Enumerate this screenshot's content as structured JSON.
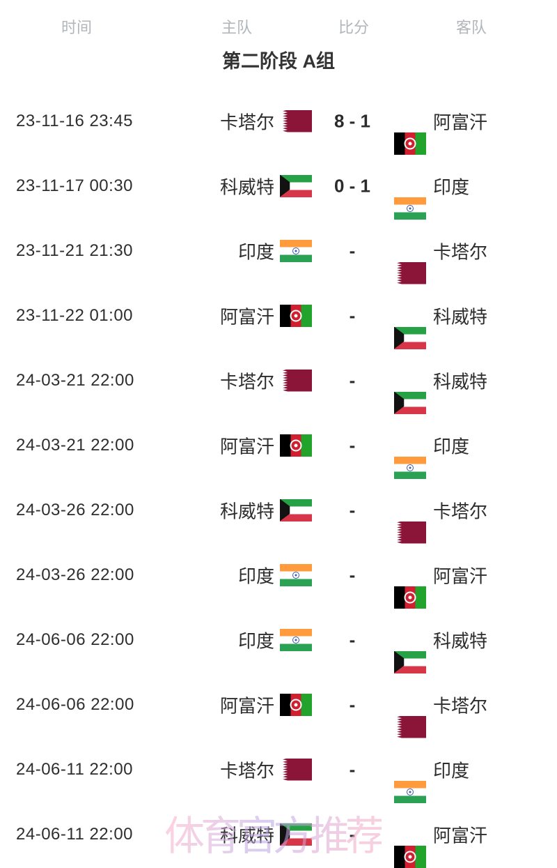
{
  "header": {
    "time_label": "时间",
    "home_label": "主队",
    "score_label": "比分",
    "away_label": "客队"
  },
  "section_title": "第二阶段 A组",
  "watermark": "体育官方推荐",
  "colors": {
    "header_text": "#b2b6bb",
    "body_text": "#2d2d2d",
    "qatar_maroon": "#8a1538",
    "afghanistan_red": "#d01f2f",
    "afghanistan_green": "#21a32c",
    "kuwait_green": "#27a145",
    "kuwait_red": "#d63648",
    "india_saffron": "#ff9a3d",
    "india_green": "#2aa153",
    "watermark_pink": "#f6aecb",
    "watermark_lavender": "#b9a5e6"
  },
  "matches": [
    {
      "time": "23-11-16 23:45",
      "home": {
        "name": "卡塔尔",
        "flag": "qatar"
      },
      "score": "8 - 1",
      "away": {
        "name": "阿富汗",
        "flag": "afghanistan"
      }
    },
    {
      "time": "23-11-17 00:30",
      "home": {
        "name": "科威特",
        "flag": "kuwait"
      },
      "score": "0 - 1",
      "away": {
        "name": "印度",
        "flag": "india"
      }
    },
    {
      "time": "23-11-21 21:30",
      "home": {
        "name": "印度",
        "flag": "india"
      },
      "score": "-",
      "away": {
        "name": "卡塔尔",
        "flag": "qatar"
      }
    },
    {
      "time": "23-11-22 01:00",
      "home": {
        "name": "阿富汗",
        "flag": "afghanistan"
      },
      "score": "-",
      "away": {
        "name": "科威特",
        "flag": "kuwait"
      }
    },
    {
      "time": "24-03-21 22:00",
      "home": {
        "name": "卡塔尔",
        "flag": "qatar"
      },
      "score": "-",
      "away": {
        "name": "科威特",
        "flag": "kuwait"
      }
    },
    {
      "time": "24-03-21 22:00",
      "home": {
        "name": "阿富汗",
        "flag": "afghanistan"
      },
      "score": "-",
      "away": {
        "name": "印度",
        "flag": "india"
      }
    },
    {
      "time": "24-03-26 22:00",
      "home": {
        "name": "科威特",
        "flag": "kuwait"
      },
      "score": "-",
      "away": {
        "name": "卡塔尔",
        "flag": "qatar"
      }
    },
    {
      "time": "24-03-26 22:00",
      "home": {
        "name": "印度",
        "flag": "india"
      },
      "score": "-",
      "away": {
        "name": "阿富汗",
        "flag": "afghanistan"
      }
    },
    {
      "time": "24-06-06 22:00",
      "home": {
        "name": "印度",
        "flag": "india"
      },
      "score": "-",
      "away": {
        "name": "科威特",
        "flag": "kuwait"
      }
    },
    {
      "time": "24-06-06 22:00",
      "home": {
        "name": "阿富汗",
        "flag": "afghanistan"
      },
      "score": "-",
      "away": {
        "name": "卡塔尔",
        "flag": "qatar"
      }
    },
    {
      "time": "24-06-11 22:00",
      "home": {
        "name": "卡塔尔",
        "flag": "qatar"
      },
      "score": "-",
      "away": {
        "name": "印度",
        "flag": "india"
      }
    },
    {
      "time": "24-06-11 22:00",
      "home": {
        "name": "科威特",
        "flag": "kuwait"
      },
      "score": "-",
      "away": {
        "name": "阿富汗",
        "flag": "afghanistan"
      }
    }
  ]
}
